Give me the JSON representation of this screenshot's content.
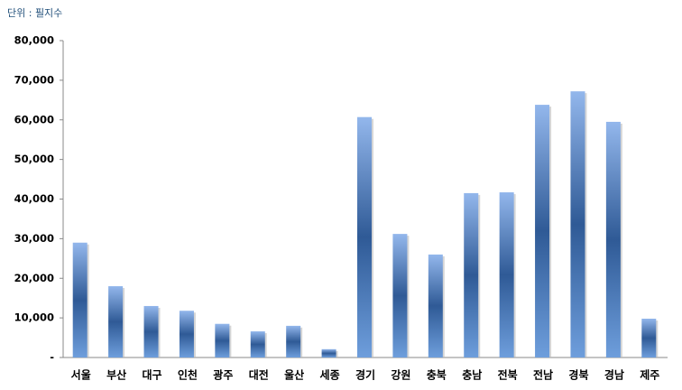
{
  "chart_data": {
    "type": "bar",
    "title": "단위 : 필지수",
    "categories": [
      "서울",
      "부산",
      "대구",
      "인천",
      "광주",
      "대전",
      "울산",
      "세종",
      "경기",
      "강원",
      "충북",
      "충남",
      "전북",
      "전남",
      "경북",
      "경남",
      "제주"
    ],
    "values": [
      29000,
      18000,
      13000,
      11800,
      8500,
      6600,
      8000,
      2100,
      60700,
      31200,
      26000,
      41500,
      41700,
      63800,
      67200,
      59500,
      9800
    ],
    "color": "#2f5a96",
    "ylim": [
      0,
      80000
    ],
    "yticks": [
      {
        "value": 0,
        "label": "-"
      },
      {
        "value": 10000,
        "label": "10,000"
      },
      {
        "value": 20000,
        "label": "20,000"
      },
      {
        "value": 30000,
        "label": "30,000"
      },
      {
        "value": 40000,
        "label": "40,000"
      },
      {
        "value": 50000,
        "label": "50,000"
      },
      {
        "value": 60000,
        "label": "60,000"
      },
      {
        "value": 70000,
        "label": "70,000"
      },
      {
        "value": 80000,
        "label": "80,000"
      }
    ],
    "grid": false
  }
}
